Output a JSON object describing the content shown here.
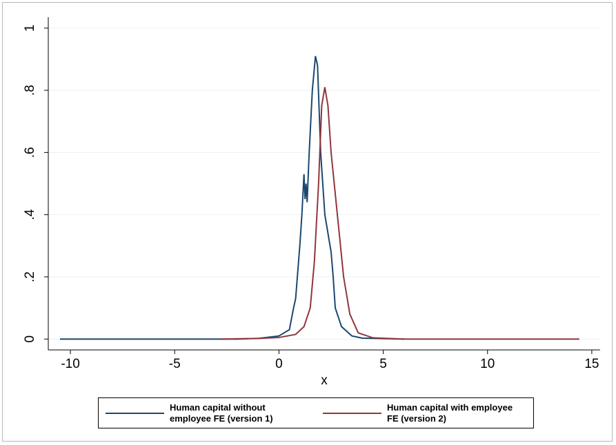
{
  "chart_data": {
    "type": "line",
    "x_label": "x",
    "xlim": [
      -11.06,
      15.4
    ],
    "xticks": [
      -10,
      -5,
      0,
      5,
      10,
      15
    ],
    "ylim": [
      -0.035,
      1.035
    ],
    "yticks": [
      0,
      {
        "value": 0.2,
        "label": ".2"
      },
      {
        "value": 0.4,
        "label": ".4"
      },
      {
        "value": 0.6,
        "label": ".6"
      },
      {
        "value": 0.8,
        "label": ".8"
      },
      1
    ],
    "grid": true,
    "series": [
      {
        "name": "Human capital without employee FE (version 1)",
        "color": "#1a476f",
        "x": [
          -10.5,
          -2,
          -1,
          0,
          0.5,
          0.7,
          0.8,
          1.0,
          1.1,
          1.2,
          1.25,
          1.3,
          1.35,
          1.45,
          1.6,
          1.75,
          1.85,
          2.0,
          2.2,
          2.5,
          2.6,
          2.7,
          3.0,
          3.5,
          4,
          6
        ],
        "values": [
          0,
          0,
          0.002,
          0.01,
          0.03,
          0.1,
          0.13,
          0.3,
          0.4,
          0.53,
          0.45,
          0.5,
          0.44,
          0.6,
          0.8,
          0.91,
          0.88,
          0.6,
          0.4,
          0.28,
          0.2,
          0.1,
          0.04,
          0.01,
          0.003,
          0
        ]
      },
      {
        "name": "Human capital with employee FE (version 2)",
        "color": "#90353b",
        "x": [
          -2.8,
          -1,
          0,
          0.8,
          1.2,
          1.5,
          1.7,
          1.9,
          2.05,
          2.2,
          2.35,
          2.5,
          2.8,
          3.1,
          3.4,
          3.8,
          4.5,
          6,
          14.4
        ],
        "values": [
          0,
          0.002,
          0.005,
          0.015,
          0.04,
          0.1,
          0.25,
          0.5,
          0.75,
          0.81,
          0.75,
          0.6,
          0.4,
          0.2,
          0.08,
          0.02,
          0.004,
          0,
          0
        ]
      }
    ]
  }
}
